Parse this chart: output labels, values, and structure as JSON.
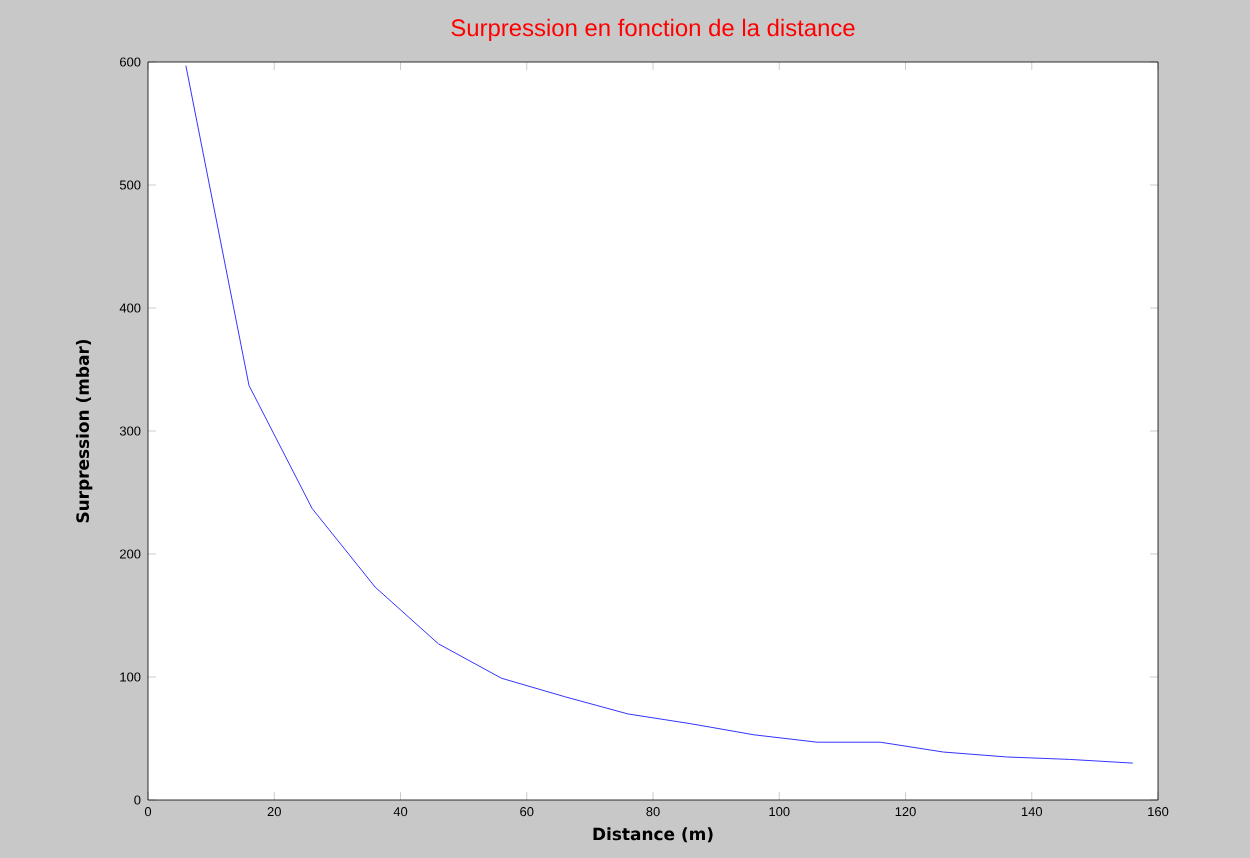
{
  "chart_data": {
    "type": "line",
    "title": "Surpression en fonction de la distance",
    "xlabel": "Distance (m)",
    "ylabel": "Surpression (mbar)",
    "x": [
      6,
      16,
      26,
      36,
      46,
      56,
      66,
      76,
      86,
      96,
      106,
      116,
      126,
      136,
      146,
      156
    ],
    "series": [
      {
        "color": "#0000ff",
        "values": [
          597,
          337,
          237,
          173,
          127,
          99,
          84,
          70,
          62,
          53,
          47,
          47,
          39,
          35,
          33,
          30
        ]
      }
    ],
    "xlim": [
      0,
      160
    ],
    "ylim": [
      0,
      600
    ],
    "xticks": [
      0,
      20,
      40,
      60,
      80,
      100,
      120,
      140,
      160
    ],
    "yticks": [
      0,
      100,
      200,
      300,
      400,
      500,
      600
    ],
    "marker": "none",
    "line_style": "solid",
    "grid": false
  }
}
